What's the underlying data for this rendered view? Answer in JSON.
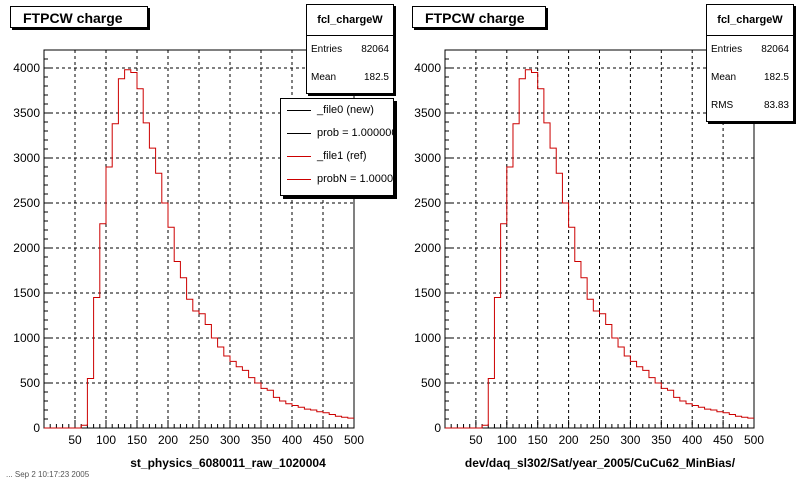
{
  "panels": [
    {
      "title": "FTPCW charge",
      "stats": {
        "name": "fcl_chargeW",
        "rows": [
          {
            "key": "Entries",
            "value": "82064"
          },
          {
            "key": "Mean",
            "value": "182.5"
          }
        ]
      },
      "legend": [
        {
          "label": "_file0 (new)",
          "color": "#000000"
        },
        {
          "label": "prob = 1.000000",
          "color": "#000000"
        },
        {
          "label": "_file1 (ref)",
          "color": "#cc0000"
        },
        {
          "label": "probN = 1.000000",
          "color": "#cc0000"
        }
      ],
      "xcaption": "st_physics_6080011_raw_1020004"
    },
    {
      "title": "FTPCW charge",
      "stats": {
        "name": "fcl_chargeW",
        "rows": [
          {
            "key": "Entries",
            "value": "82064"
          },
          {
            "key": "Mean",
            "value": "182.5"
          },
          {
            "key": "RMS",
            "value": "83.83"
          }
        ]
      },
      "xcaption": "dev/daq_sl302/Sat/year_2005/CuCu62_MinBias/"
    }
  ],
  "footer_stamp": "... Sep 2 10:17:23 2005",
  "chart_data": [
    {
      "type": "line",
      "title": "FTPCW charge",
      "xlabel": "st_physics_6080011_raw_1020004",
      "ylabel": "",
      "xlim": [
        0,
        500
      ],
      "ylim": [
        0,
        4200
      ],
      "xticks": [
        50,
        100,
        150,
        200,
        250,
        300,
        350,
        400,
        450,
        500
      ],
      "yticks": [
        0,
        500,
        1000,
        1500,
        2000,
        2500,
        3000,
        3500,
        4000
      ],
      "grid": true,
      "bin_width": 10,
      "series": [
        {
          "name": "_file1 (ref)",
          "color": "#cc0000",
          "x": [
            0,
            10,
            20,
            30,
            40,
            50,
            60,
            70,
            80,
            90,
            100,
            110,
            120,
            130,
            140,
            150,
            160,
            170,
            180,
            190,
            200,
            210,
            220,
            230,
            240,
            250,
            260,
            270,
            280,
            290,
            300,
            310,
            320,
            330,
            340,
            350,
            360,
            370,
            380,
            390,
            400,
            410,
            420,
            430,
            440,
            450,
            460,
            470,
            480,
            490,
            500
          ],
          "values": [
            0,
            0,
            0,
            0,
            0,
            0,
            30,
            550,
            1450,
            2270,
            2900,
            3380,
            3880,
            3980,
            3950,
            3770,
            3390,
            3110,
            2830,
            2500,
            2230,
            1850,
            1670,
            1430,
            1300,
            1270,
            1150,
            1000,
            900,
            800,
            740,
            680,
            640,
            560,
            500,
            440,
            420,
            340,
            300,
            270,
            250,
            230,
            210,
            200,
            180,
            170,
            150,
            130,
            120,
            110,
            100
          ]
        }
      ]
    },
    {
      "type": "line",
      "title": "FTPCW charge",
      "xlabel": "dev/daq_sl302/Sat/year_2005/CuCu62_MinBias/",
      "ylabel": "",
      "xlim": [
        0,
        500
      ],
      "ylim": [
        0,
        4200
      ],
      "xticks": [
        50,
        100,
        150,
        200,
        250,
        300,
        350,
        400,
        450,
        500
      ],
      "yticks": [
        0,
        500,
        1000,
        1500,
        2000,
        2500,
        3000,
        3500,
        4000
      ],
      "grid": true,
      "bin_width": 10,
      "series": [
        {
          "name": "fcl_chargeW",
          "color": "#cc0000",
          "x": [
            0,
            10,
            20,
            30,
            40,
            50,
            60,
            70,
            80,
            90,
            100,
            110,
            120,
            130,
            140,
            150,
            160,
            170,
            180,
            190,
            200,
            210,
            220,
            230,
            240,
            250,
            260,
            270,
            280,
            290,
            300,
            310,
            320,
            330,
            340,
            350,
            360,
            370,
            380,
            390,
            400,
            410,
            420,
            430,
            440,
            450,
            460,
            470,
            480,
            490,
            500
          ],
          "values": [
            0,
            0,
            0,
            0,
            0,
            0,
            30,
            550,
            1450,
            2270,
            2900,
            3380,
            3880,
            3980,
            3950,
            3770,
            3390,
            3110,
            2830,
            2500,
            2230,
            1850,
            1670,
            1430,
            1300,
            1270,
            1150,
            1000,
            900,
            800,
            740,
            680,
            640,
            560,
            500,
            440,
            420,
            340,
            300,
            270,
            250,
            230,
            210,
            200,
            180,
            170,
            150,
            130,
            120,
            110,
            100
          ]
        }
      ]
    }
  ]
}
